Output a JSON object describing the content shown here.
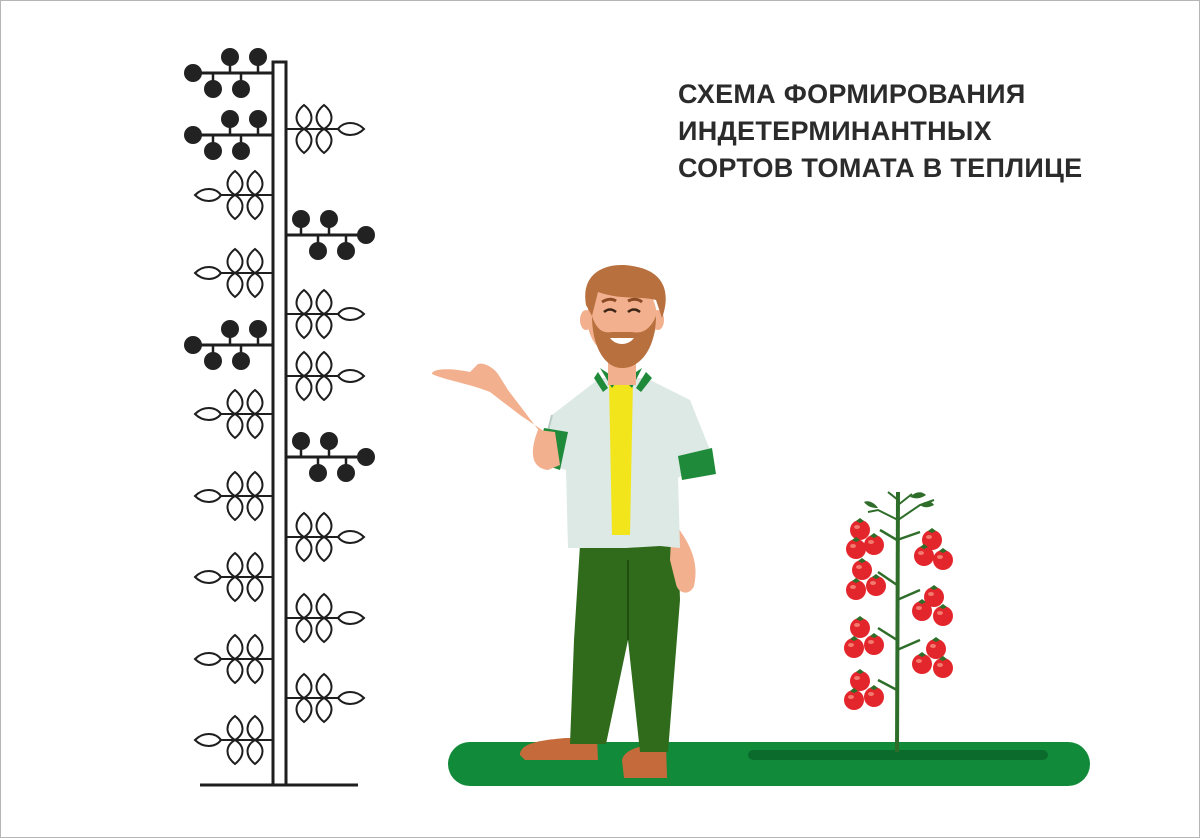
{
  "title": {
    "lines": [
      "СХЕМА ФОРМИРОВАНИЯ",
      "ИНДЕТЕРМИНАНТНЫХ",
      "СОРТОВ ТОМАТА В ТЕПЛИЦЕ"
    ]
  },
  "colors": {
    "stroke": "#1e1e1e",
    "fruit_scheme": "#222222",
    "tomato": "#e3262c",
    "ground": "#118a3a",
    "ground_shadow": "#0b6b2c",
    "plant_stem": "#2f6e2a",
    "shirt": "#dce9e5",
    "undershirt": "#f2e51b",
    "trousers": "#2f6b1a",
    "skin": "#f3b08e",
    "hair": "#b8703e"
  },
  "icons": {
    "scheme": "plant-formation-scheme-icon",
    "gardener": "gardener-illustration-icon",
    "tomato_plant": "tomato-plant-illustration-icon"
  }
}
